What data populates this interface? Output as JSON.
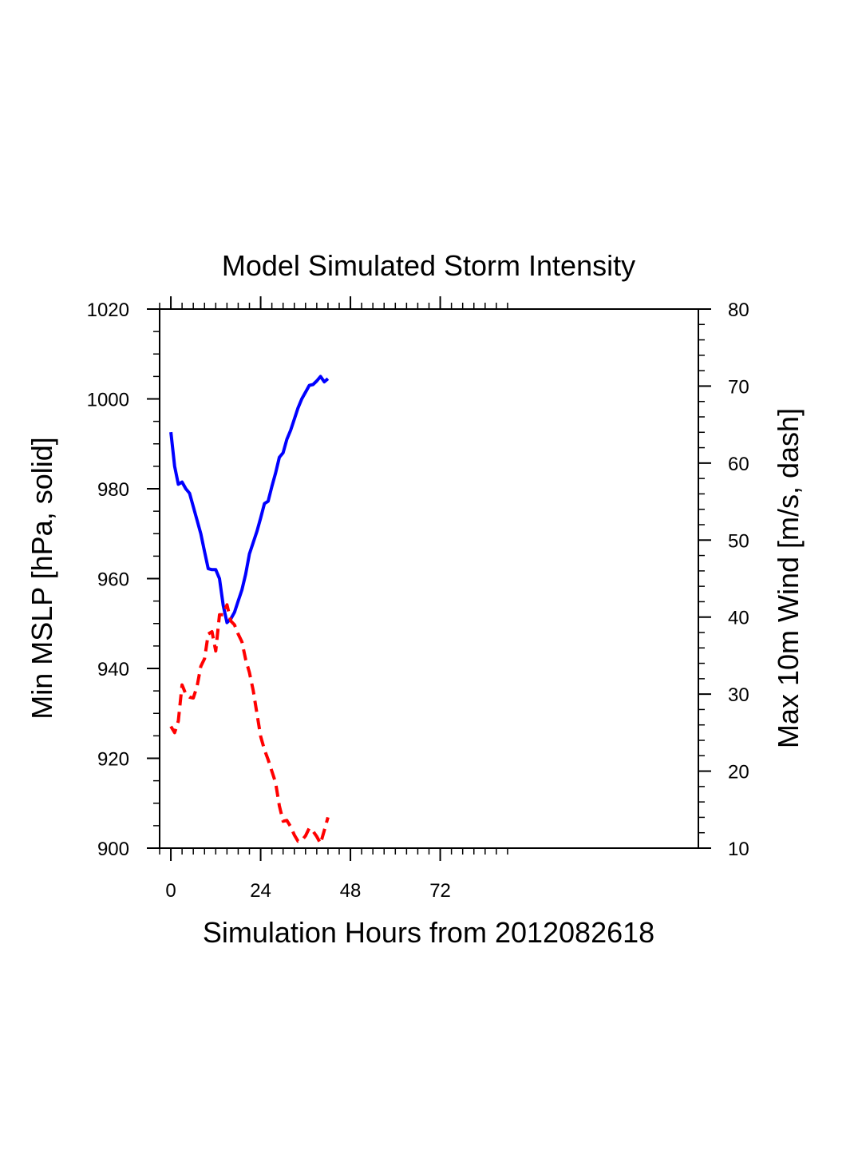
{
  "chart_data": {
    "type": "line",
    "title": "Model Simulated Storm Intensity",
    "xlabel": "Simulation Hours from 2012082618",
    "ylabel_left": "Min MSLP  [hPa, solid]",
    "ylabel_right": "Max 10m Wind  [m/s, dash]",
    "xlim": [
      -3,
      141
    ],
    "ylim_left": [
      900,
      1020
    ],
    "ylim_right": [
      10,
      80
    ],
    "x_ticks": [
      0,
      24,
      48,
      72
    ],
    "x_tick_labels": [
      "0",
      "24",
      "48",
      "72"
    ],
    "y_left_ticks": [
      900,
      920,
      940,
      960,
      980,
      1000,
      1020
    ],
    "y_left_tick_labels": [
      "900",
      "920",
      "940",
      "960",
      "980",
      "1000",
      "1020"
    ],
    "y_right_ticks": [
      10,
      20,
      30,
      40,
      50,
      60,
      70,
      80
    ],
    "y_right_tick_labels": [
      "10",
      "20",
      "30",
      "40",
      "50",
      "60",
      "70",
      "80"
    ],
    "grid": false,
    "series": [
      {
        "axis": "left",
        "style": "solid",
        "color": "#0000ff",
        "x": [
          0,
          1,
          2,
          3,
          4,
          5,
          6,
          7,
          8,
          9,
          10,
          11,
          12,
          13,
          14,
          15,
          16,
          17,
          18,
          19,
          20,
          21,
          22,
          23,
          24,
          25,
          26,
          27,
          28,
          29,
          30,
          31,
          32,
          33,
          34,
          35,
          36,
          37,
          38,
          39,
          40,
          41,
          42
        ],
        "y": [
          992.6,
          985,
          981,
          981.5,
          980,
          979,
          976,
          973,
          970,
          966,
          962.2,
          962,
          962,
          960,
          954,
          950.2,
          951,
          952.5,
          955,
          957.5,
          961,
          965.5,
          968,
          970.5,
          973.5,
          976.7,
          977.2,
          980.5,
          983.5,
          987,
          988,
          991,
          993,
          995.5,
          998,
          1000,
          1001.5,
          1003,
          1003.2,
          1004,
          1005,
          1003.8,
          1004.5
        ]
      },
      {
        "axis": "right",
        "style": "dashed",
        "color": "#ff0000",
        "x": [
          0,
          1,
          2,
          3,
          4,
          5,
          6,
          7,
          8,
          9,
          10,
          11,
          12,
          13,
          14,
          15,
          16,
          17,
          18,
          19,
          20,
          21,
          22,
          23,
          24,
          25,
          26,
          27,
          28,
          29,
          30,
          31,
          32,
          33,
          34,
          35,
          36,
          37,
          38,
          39,
          40,
          41,
          42
        ],
        "y": [
          25.8,
          25,
          26.5,
          31.2,
          30,
          29.6,
          29.5,
          31,
          33.6,
          34.6,
          37.8,
          38.1,
          35.6,
          40.3,
          40.3,
          41.6,
          39.5,
          39,
          37.8,
          36.8,
          34.5,
          32.8,
          30.5,
          27.5,
          24.5,
          22.8,
          21.5,
          20,
          18.5,
          15.5,
          13.5,
          13.6,
          12.8,
          11.7,
          10.9,
          11,
          11.6,
          12.6,
          12.2,
          11.5,
          10.6,
          12.3,
          14
        ]
      }
    ]
  }
}
